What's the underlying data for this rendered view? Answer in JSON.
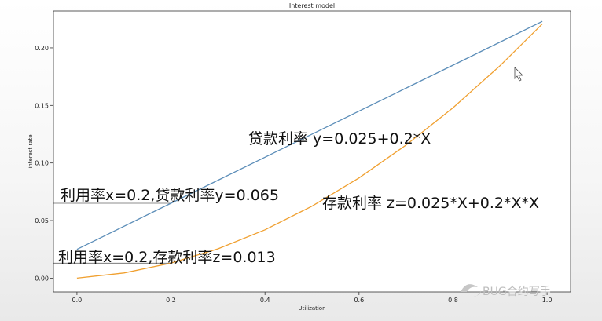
{
  "chart_data": {
    "type": "line",
    "title": "Interest model",
    "xlabel": "Utilization",
    "ylabel": "interest rate",
    "xlim": [
      -0.05,
      1.05
    ],
    "ylim": [
      -0.012,
      0.232
    ],
    "x_ticks": [
      0.0,
      0.2,
      0.4,
      0.6,
      0.8,
      1.0
    ],
    "x_tick_labels": [
      "0.0",
      "0.2",
      "0.4",
      "0.6",
      "0.8",
      "1.0"
    ],
    "y_ticks": [
      0.0,
      0.05,
      0.1,
      0.15,
      0.2
    ],
    "y_tick_labels": [
      "0.00",
      "0.05",
      "0.10",
      "0.15",
      "0.20"
    ],
    "grid": false,
    "series": [
      {
        "name": "贷款利率",
        "formula": "y=0.025+0.2*X",
        "color": "#5b8db8",
        "x": [
          0.0,
          0.2,
          0.4,
          0.6,
          0.8,
          0.99
        ],
        "y": [
          0.025,
          0.065,
          0.105,
          0.145,
          0.185,
          0.223
        ]
      },
      {
        "name": "存款利率",
        "formula": "z=0.025*X+0.2*X*X",
        "color": "#f0a030",
        "x": [
          0.0,
          0.1,
          0.2,
          0.3,
          0.4,
          0.5,
          0.6,
          0.7,
          0.8,
          0.9,
          0.99
        ],
        "y": [
          0.0,
          0.0045,
          0.013,
          0.0255,
          0.042,
          0.0625,
          0.087,
          0.1155,
          0.148,
          0.1845,
          0.2208
        ]
      }
    ],
    "guides": {
      "x": 0.2,
      "y_loan": 0.065,
      "y_deposit": 0.013,
      "color": "#666666"
    },
    "annotations": {
      "loan_formula": "贷款利率 y=0.025+0.2*X",
      "deposit_formula": "存款利率 z=0.025*X+0.2*X*X",
      "loan_point": "利用率x=0.2,贷款利率y=0.065",
      "deposit_point": "利用率x=0.2,存款利率z=0.013"
    }
  },
  "watermark": "BUG合约写手"
}
